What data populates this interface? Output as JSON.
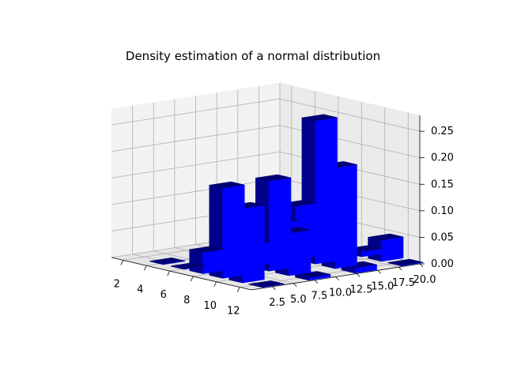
{
  "chart_data": {
    "type": "bar3d",
    "title": "Density estimation of a normal distribution",
    "xlabel": "",
    "ylabel": "",
    "zlabel": "",
    "x_ticks": [
      "2",
      "4",
      "6",
      "8",
      "10",
      "12"
    ],
    "y_ticks": [
      "2.5",
      "5.0",
      "7.5",
      "10.0",
      "12.5",
      "15.0",
      "17.5",
      "20.0"
    ],
    "z_ticks": [
      "0.00",
      "0.05",
      "0.10",
      "0.15",
      "0.20",
      "0.25"
    ],
    "x_range": [
      1,
      13
    ],
    "y_range": [
      0,
      20
    ],
    "z_range": [
      0,
      0.28
    ],
    "grid": true,
    "bar_color": "#0000ff",
    "bars": [
      {
        "x": 3.2,
        "y": 1.5,
        "z": 0.0
      },
      {
        "x": 5.0,
        "y": 1.5,
        "z": 0.0
      },
      {
        "x": 6.6,
        "y": 1.5,
        "z": 0.04
      },
      {
        "x": 8.3,
        "y": 1.5,
        "z": 0.17
      },
      {
        "x": 10.0,
        "y": 1.5,
        "z": 0.14
      },
      {
        "x": 11.7,
        "y": 1.5,
        "z": 0.0
      },
      {
        "x": 3.2,
        "y": 7.0,
        "z": 0.0
      },
      {
        "x": 5.0,
        "y": 7.0,
        "z": 0.0
      },
      {
        "x": 6.6,
        "y": 7.0,
        "z": 0.04
      },
      {
        "x": 8.3,
        "y": 7.0,
        "z": 0.17
      },
      {
        "x": 10.0,
        "y": 7.0,
        "z": 0.08
      },
      {
        "x": 11.7,
        "y": 7.0,
        "z": 0.005
      },
      {
        "x": 3.2,
        "y": 12.5,
        "z": 0.0
      },
      {
        "x": 5.0,
        "y": 12.5,
        "z": 0.06
      },
      {
        "x": 6.6,
        "y": 12.5,
        "z": 0.1
      },
      {
        "x": 8.3,
        "y": 12.5,
        "z": 0.27
      },
      {
        "x": 10.0,
        "y": 12.5,
        "z": 0.19
      },
      {
        "x": 11.7,
        "y": 12.5,
        "z": 0.01
      },
      {
        "x": 3.2,
        "y": 18.0,
        "z": 0.0
      },
      {
        "x": 5.0,
        "y": 18.0,
        "z": 0.0
      },
      {
        "x": 6.6,
        "y": 18.0,
        "z": 0.0
      },
      {
        "x": 8.3,
        "y": 18.0,
        "z": 0.01
      },
      {
        "x": 10.0,
        "y": 18.0,
        "z": 0.04
      },
      {
        "x": 11.7,
        "y": 18.0,
        "z": 0.0
      }
    ]
  }
}
